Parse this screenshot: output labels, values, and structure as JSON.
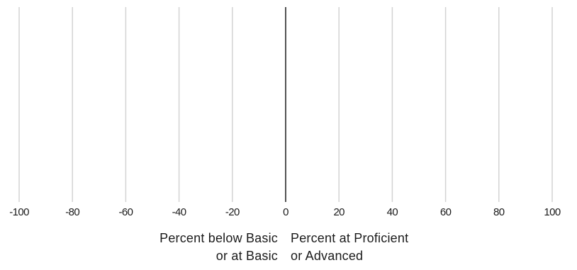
{
  "chart_data": {
    "type": "bar",
    "orientation": "horizontal-diverging",
    "categories": [],
    "series": [],
    "x_ticks": [
      -100,
      -80,
      -60,
      -40,
      -20,
      0,
      20,
      40,
      60,
      80,
      100
    ],
    "xlim": [
      -100,
      100
    ],
    "xlabel_left": [
      "Percent below Basic",
      "or at Basic"
    ],
    "xlabel_right": [
      "Percent at Proficient",
      "or Advanced"
    ],
    "grid": true,
    "colors": {
      "grid": "#d3d3d3",
      "zero_line": "#1a1a1a",
      "text": "#1a1a1a"
    }
  }
}
